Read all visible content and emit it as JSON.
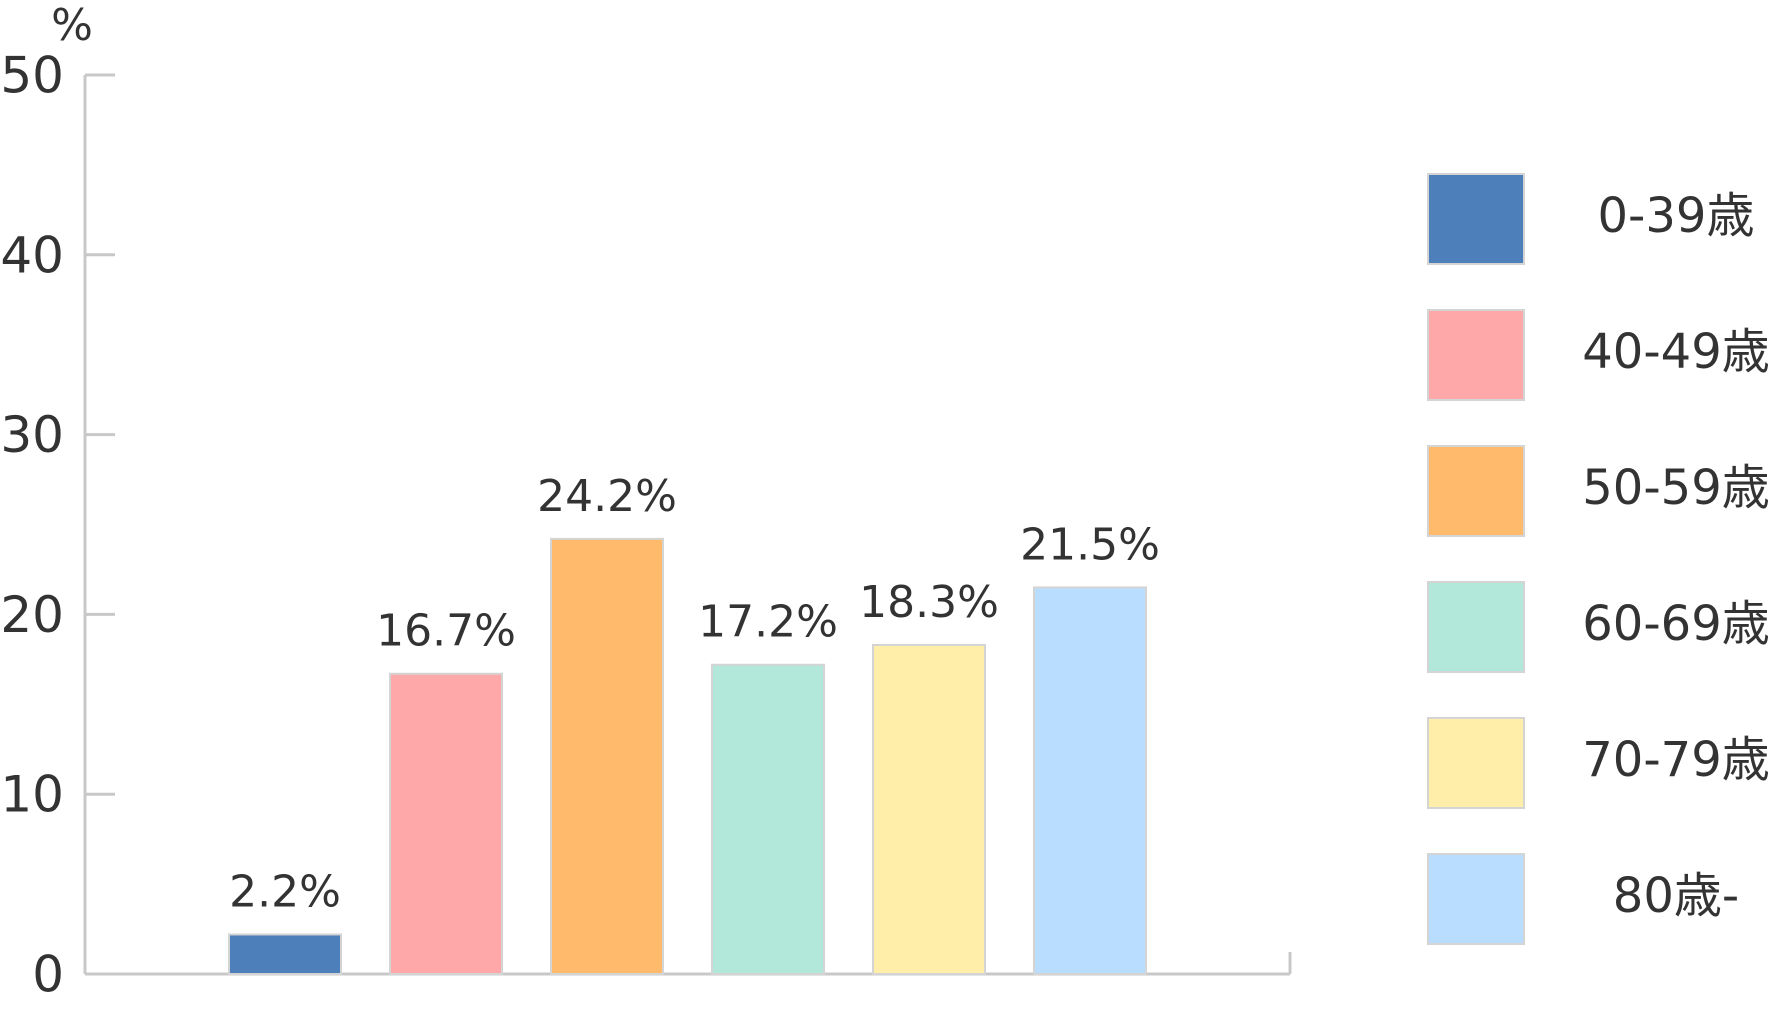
{
  "chart_data": {
    "type": "bar",
    "y_unit": "%",
    "categories": [
      "0-39歳",
      "40-49歳",
      "50-59歳",
      "60-69歳",
      "70-79歳",
      "80歳-"
    ],
    "values": [
      2.2,
      16.7,
      24.2,
      17.2,
      18.3,
      21.5
    ],
    "value_labels": [
      "2.2%",
      "16.7%",
      "24.2%",
      "17.2%",
      "18.3%",
      "21.5%"
    ],
    "colors": [
      "#4d7fba",
      "#ffa8aa",
      "#ffbb6b",
      "#b1e8da",
      "#ffeeaa",
      "#b9ddff"
    ],
    "ylim": [
      0,
      50
    ],
    "yticks": [
      0,
      10,
      20,
      30,
      40,
      50
    ],
    "legend": "right"
  }
}
